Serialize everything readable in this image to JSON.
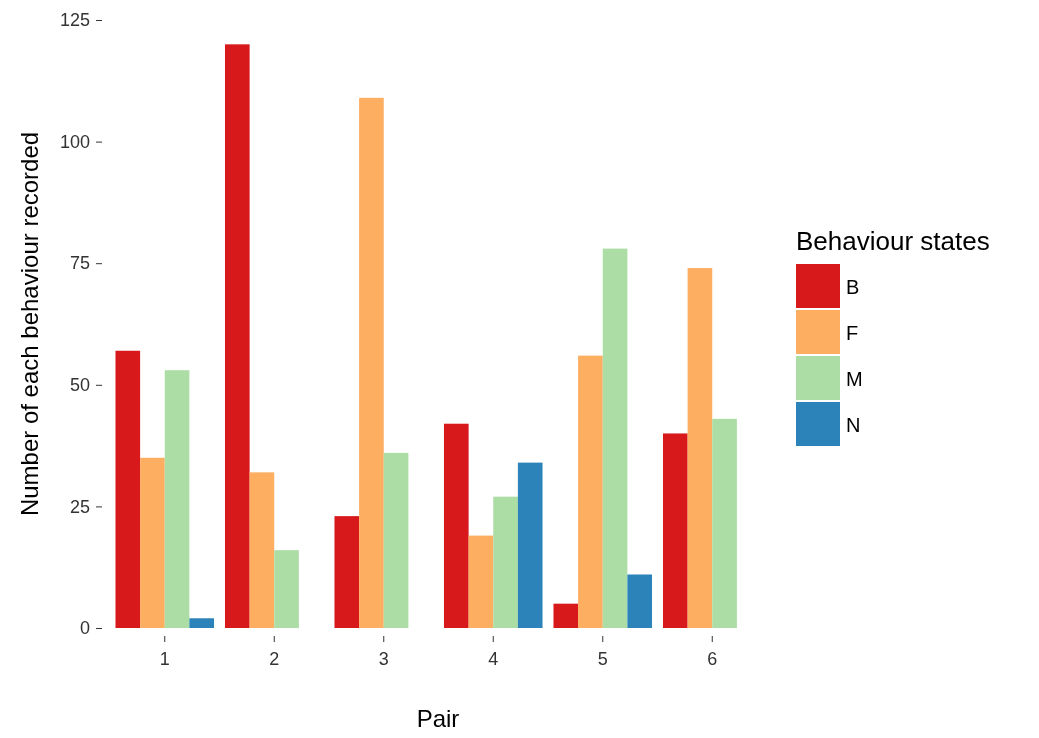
{
  "chart_data": {
    "type": "bar",
    "xlabel": "Pair",
    "ylabel": "Number of each behaviour recorded",
    "legend_title": "Behaviour states",
    "categories": [
      "1",
      "2",
      "3",
      "4",
      "5",
      "6"
    ],
    "series": [
      {
        "name": "B",
        "color": "#d7191c",
        "values": [
          57,
          120,
          23,
          42,
          5,
          40
        ]
      },
      {
        "name": "F",
        "color": "#fdae61",
        "values": [
          35,
          32,
          109,
          19,
          56,
          74
        ]
      },
      {
        "name": "M",
        "color": "#abdda4",
        "values": [
          53,
          16,
          36,
          27,
          78,
          43
        ]
      },
      {
        "name": "N",
        "color": "#2b83ba",
        "values": [
          2,
          null,
          null,
          34,
          11,
          null
        ]
      }
    ],
    "ylim": [
      0,
      125
    ],
    "yticks": [
      0,
      25,
      50,
      75,
      100,
      125
    ],
    "grid": false,
    "legend": "right"
  }
}
